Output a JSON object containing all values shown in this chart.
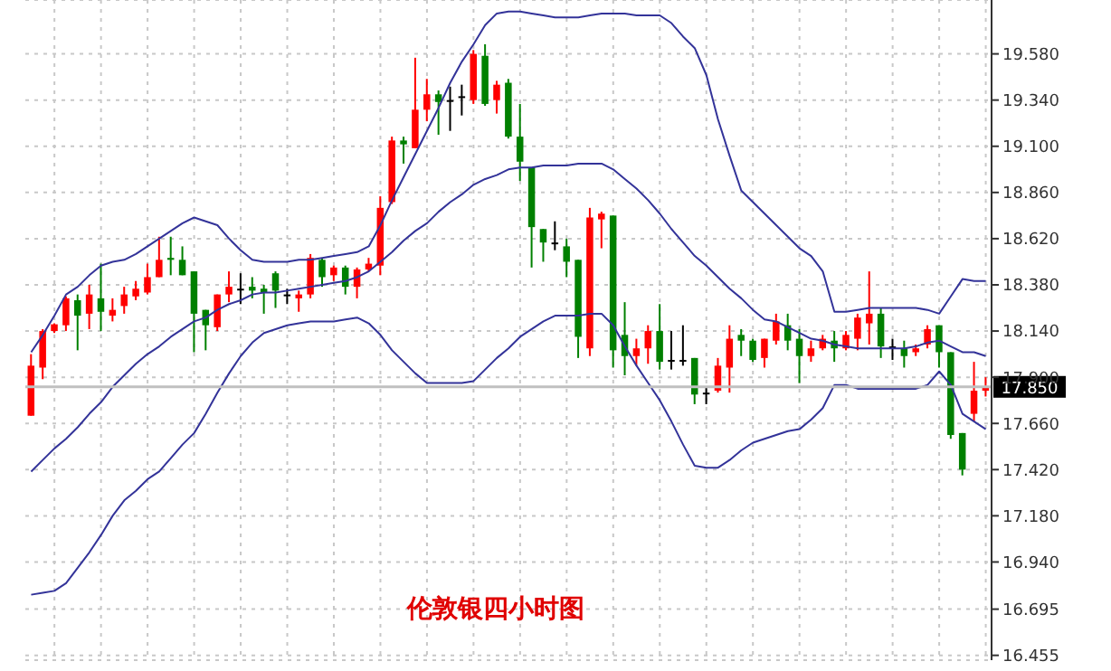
{
  "chart_data": {
    "type": "candlestick",
    "title": "伦敦银四小时图",
    "categories": [
      null,
      null,
      null,
      null,
      null,
      null,
      null,
      null,
      null,
      null,
      null,
      null,
      null,
      null,
      null,
      null,
      null,
      null,
      null,
      null,
      null,
      null,
      null,
      null,
      null,
      null,
      null,
      null,
      null,
      null,
      null,
      null,
      null,
      null,
      null,
      null,
      null,
      null,
      null,
      null,
      null,
      null,
      null,
      null,
      null,
      null,
      null,
      null,
      null,
      null,
      null,
      null,
      null,
      null,
      null,
      null,
      null,
      null,
      null,
      null,
      null,
      null,
      null,
      null,
      null,
      null,
      null,
      null,
      null,
      null,
      null,
      null,
      null,
      null,
      null,
      null,
      null,
      null,
      null,
      null,
      null,
      null,
      null
    ],
    "ohlc": [
      [
        17.7,
        18.02,
        17.7,
        17.96
      ],
      [
        17.95,
        18.15,
        17.89,
        18.14
      ],
      [
        18.14,
        18.18,
        18.13,
        18.175
      ],
      [
        18.17,
        18.32,
        18.14,
        18.31
      ],
      [
        18.3,
        18.33,
        18.04,
        18.22
      ],
      [
        18.23,
        18.38,
        18.15,
        18.33
      ],
      [
        18.31,
        18.49,
        18.14,
        18.24
      ],
      [
        18.22,
        18.31,
        18.19,
        18.25
      ],
      [
        18.27,
        18.37,
        18.23,
        18.33
      ],
      [
        18.32,
        18.4,
        18.3,
        18.36
      ],
      [
        18.34,
        18.49,
        18.33,
        18.42
      ],
      [
        18.42,
        18.63,
        18.42,
        18.51
      ],
      [
        18.52,
        18.63,
        18.43,
        18.51
      ],
      [
        18.51,
        18.58,
        18.43,
        18.43
      ],
      [
        18.45,
        18.45,
        18.03,
        18.23
      ],
      [
        18.25,
        18.25,
        18.04,
        18.17
      ],
      [
        18.16,
        18.33,
        18.14,
        18.33
      ],
      [
        18.33,
        18.45,
        18.29,
        18.37
      ],
      [
        18.36,
        18.44,
        18.28,
        18.36
      ],
      [
        18.37,
        18.42,
        18.31,
        18.35
      ],
      [
        18.36,
        18.38,
        18.23,
        18.34
      ],
      [
        18.44,
        18.45,
        18.26,
        18.35
      ],
      [
        18.33,
        18.36,
        18.28,
        18.33
      ],
      [
        18.31,
        18.35,
        18.24,
        18.33
      ],
      [
        18.33,
        18.54,
        18.31,
        18.52
      ],
      [
        18.51,
        18.52,
        18.37,
        18.42
      ],
      [
        18.43,
        18.48,
        18.4,
        18.47
      ],
      [
        18.47,
        18.48,
        18.33,
        18.37
      ],
      [
        18.37,
        18.47,
        18.31,
        18.46
      ],
      [
        18.46,
        18.52,
        18.45,
        18.49
      ],
      [
        18.48,
        18.84,
        18.43,
        18.78
      ],
      [
        18.81,
        19.15,
        18.8,
        19.13
      ],
      [
        19.13,
        19.15,
        19.01,
        19.11
      ],
      [
        19.09,
        19.56,
        19.09,
        19.29
      ],
      [
        19.29,
        19.45,
        19.23,
        19.37
      ],
      [
        19.37,
        19.39,
        19.16,
        19.33
      ],
      [
        19.34,
        19.41,
        19.18,
        19.34
      ],
      [
        19.36,
        19.42,
        19.26,
        19.36
      ],
      [
        19.34,
        19.6,
        19.32,
        19.58
      ],
      [
        19.57,
        19.63,
        19.31,
        19.32
      ],
      [
        19.34,
        19.44,
        19.27,
        19.42
      ],
      [
        19.43,
        19.45,
        19.14,
        19.15
      ],
      [
        19.15,
        19.32,
        18.92,
        19.02
      ],
      [
        18.99,
        18.99,
        18.47,
        18.68
      ],
      [
        18.67,
        18.67,
        18.5,
        18.6
      ],
      [
        18.6,
        18.71,
        18.56,
        18.6
      ],
      [
        18.58,
        18.62,
        18.42,
        18.5
      ],
      [
        18.51,
        18.51,
        18.0,
        18.11
      ],
      [
        18.05,
        18.78,
        18.01,
        18.73
      ],
      [
        18.72,
        18.76,
        18.57,
        18.75
      ],
      [
        18.74,
        18.74,
        17.95,
        18.04
      ],
      [
        18.12,
        18.29,
        17.91,
        18.01
      ],
      [
        18.01,
        18.1,
        17.96,
        18.05
      ],
      [
        18.05,
        18.17,
        17.97,
        18.14
      ],
      [
        18.14,
        18.28,
        17.94,
        17.98
      ],
      [
        17.99,
        18.14,
        17.94,
        17.99
      ],
      [
        17.99,
        18.17,
        17.96,
        17.99
      ],
      [
        18.0,
        18.0,
        17.76,
        17.81
      ],
      [
        17.82,
        17.85,
        17.76,
        17.82
      ],
      [
        17.83,
        18.0,
        17.82,
        17.96
      ],
      [
        17.95,
        18.17,
        17.82,
        18.1
      ],
      [
        18.12,
        18.15,
        18.01,
        18.09
      ],
      [
        18.09,
        18.1,
        17.98,
        17.99
      ],
      [
        18.0,
        18.1,
        17.95,
        18.1
      ],
      [
        18.09,
        18.23,
        18.07,
        18.19
      ],
      [
        18.17,
        18.23,
        18.04,
        18.09
      ],
      [
        18.1,
        18.15,
        17.87,
        18.01
      ],
      [
        18.01,
        18.09,
        17.98,
        18.05
      ],
      [
        18.05,
        18.12,
        18.04,
        18.1
      ],
      [
        18.09,
        18.14,
        17.98,
        18.05
      ],
      [
        18.05,
        18.14,
        18.04,
        18.12
      ],
      [
        18.1,
        18.23,
        18.04,
        18.21
      ],
      [
        18.18,
        18.45,
        18.07,
        18.23
      ],
      [
        18.23,
        18.26,
        18.0,
        18.06
      ],
      [
        18.06,
        18.1,
        17.99,
        18.06
      ],
      [
        18.05,
        18.09,
        17.95,
        18.01
      ],
      [
        18.03,
        18.07,
        18.01,
        18.05
      ],
      [
        18.07,
        18.17,
        18.05,
        18.15
      ],
      [
        18.17,
        18.17,
        17.95,
        18.03
      ],
      [
        18.03,
        18.03,
        17.58,
        17.6
      ],
      [
        17.61,
        17.61,
        17.39,
        17.42
      ],
      [
        17.71,
        17.98,
        17.67,
        17.83
      ],
      [
        17.83,
        17.9,
        17.8,
        17.85
      ]
    ],
    "colors": [
      "#ff0000",
      "#ff0000",
      "#ff0000",
      "#ff0000",
      "#008000",
      "#ff0000",
      "#008000",
      "#ff0000",
      "#ff0000",
      "#ff0000",
      "#ff0000",
      "#ff0000",
      "#008000",
      "#008000",
      "#008000",
      "#008000",
      "#ff0000",
      "#ff0000",
      "#000000",
      "#008000",
      "#008000",
      "#008000",
      "#000000",
      "#ff0000",
      "#ff0000",
      "#008000",
      "#ff0000",
      "#008000",
      "#ff0000",
      "#ff0000",
      "#ff0000",
      "#ff0000",
      "#008000",
      "#ff0000",
      "#ff0000",
      "#008000",
      "#000000",
      "#000000",
      "#ff0000",
      "#008000",
      "#ff0000",
      "#008000",
      "#008000",
      "#008000",
      "#008000",
      "#000000",
      "#008000",
      "#008000",
      "#ff0000",
      "#ff0000",
      "#008000",
      "#008000",
      "#ff0000",
      "#ff0000",
      "#008000",
      "#000000",
      "#000000",
      "#008000",
      "#000000",
      "#ff0000",
      "#ff0000",
      "#008000",
      "#008000",
      "#ff0000",
      "#ff0000",
      "#008000",
      "#008000",
      "#ff0000",
      "#ff0000",
      "#008000",
      "#ff0000",
      "#ff0000",
      "#ff0000",
      "#008000",
      "#000000",
      "#008000",
      "#ff0000",
      "#ff0000",
      "#008000",
      "#008000",
      "#008000",
      "#ff0000",
      "#ff0000"
    ],
    "series": [
      {
        "type": "line",
        "color": "#333399",
        "values": [
          18.03,
          18.12,
          18.22,
          18.33,
          18.37,
          18.43,
          18.48,
          18.5,
          18.51,
          18.54,
          18.58,
          18.62,
          18.66,
          18.7,
          18.73,
          18.71,
          18.69,
          18.62,
          18.56,
          18.51,
          18.5,
          18.5,
          18.5,
          18.51,
          18.51,
          18.52,
          18.53,
          18.54,
          18.55,
          18.58,
          18.69,
          18.82,
          18.94,
          19.06,
          19.18,
          19.3,
          19.43,
          19.54,
          19.63,
          19.73,
          19.79,
          19.8,
          19.8,
          19.79,
          19.78,
          19.77,
          19.77,
          19.77,
          19.78,
          19.79,
          19.79,
          19.79,
          19.78,
          19.78,
          19.78,
          19.74,
          19.67,
          19.61,
          19.47,
          19.24,
          19.05,
          18.87,
          18.81,
          18.75,
          18.69,
          18.63,
          18.57,
          18.53,
          18.45,
          18.24,
          18.24,
          18.25,
          18.26,
          18.26,
          18.26,
          18.26,
          18.26,
          18.25,
          18.23,
          18.32,
          18.41,
          18.4,
          18.4
        ]
      },
      {
        "type": "line",
        "color": "#333399",
        "values": [
          17.41,
          17.47,
          17.53,
          17.58,
          17.64,
          17.71,
          17.77,
          17.85,
          17.91,
          17.97,
          18.02,
          18.06,
          18.11,
          18.15,
          18.19,
          18.21,
          18.25,
          18.28,
          18.3,
          18.33,
          18.34,
          18.34,
          18.35,
          18.36,
          18.37,
          18.38,
          18.39,
          18.4,
          18.42,
          18.45,
          18.5,
          18.55,
          18.61,
          18.66,
          18.7,
          18.76,
          18.81,
          18.85,
          18.9,
          18.93,
          18.95,
          18.98,
          18.99,
          18.99,
          19.0,
          19.0,
          19.0,
          19.01,
          19.01,
          19.01,
          18.98,
          18.93,
          18.88,
          18.82,
          18.75,
          18.67,
          18.6,
          18.53,
          18.48,
          18.42,
          18.36,
          18.31,
          18.25,
          18.2,
          18.19,
          18.16,
          18.13,
          18.1,
          18.09,
          18.07,
          18.06,
          18.05,
          18.05,
          18.05,
          18.05,
          18.05,
          18.06,
          18.08,
          18.09,
          18.06,
          18.03,
          18.03,
          18.01
        ]
      },
      {
        "type": "line",
        "color": "#333399",
        "values": [
          16.77,
          16.78,
          16.79,
          16.83,
          16.91,
          16.99,
          17.08,
          17.18,
          17.26,
          17.31,
          17.37,
          17.41,
          17.48,
          17.55,
          17.61,
          17.71,
          17.82,
          17.92,
          18.01,
          18.08,
          18.13,
          18.15,
          18.17,
          18.18,
          18.19,
          18.19,
          18.19,
          18.2,
          18.21,
          18.18,
          18.12,
          18.04,
          17.98,
          17.92,
          17.87,
          17.87,
          17.87,
          17.87,
          17.88,
          17.94,
          18.0,
          18.05,
          18.11,
          18.15,
          18.19,
          18.22,
          18.22,
          18.22,
          18.23,
          18.23,
          18.17,
          18.06,
          17.96,
          17.87,
          17.78,
          17.67,
          17.55,
          17.44,
          17.43,
          17.43,
          17.47,
          17.52,
          17.56,
          17.58,
          17.6,
          17.62,
          17.63,
          17.68,
          17.74,
          17.86,
          17.86,
          17.84,
          17.84,
          17.84,
          17.84,
          17.84,
          17.84,
          17.86,
          17.93,
          17.86,
          17.71,
          17.67,
          17.63
        ]
      }
    ],
    "ylim": [
      16.43,
      19.86
    ],
    "yticks": [
      {
        "value": 19.58,
        "label": "19.580"
      },
      {
        "value": 19.34,
        "label": "19.340"
      },
      {
        "value": 19.1,
        "label": "19.100"
      },
      {
        "value": 18.86,
        "label": "18.860"
      },
      {
        "value": 18.62,
        "label": "18.620"
      },
      {
        "value": 18.38,
        "label": "18.380"
      },
      {
        "value": 18.14,
        "label": "18.140"
      },
      {
        "value": 17.9,
        "label": "17.900"
      },
      {
        "value": 17.66,
        "label": "17.660"
      },
      {
        "value": 17.42,
        "label": "17.420"
      },
      {
        "value": 17.18,
        "label": "17.180"
      },
      {
        "value": 16.94,
        "label": "16.940"
      },
      {
        "value": 16.695,
        "label": "16.695"
      },
      {
        "value": 16.455,
        "label": "16.455"
      }
    ],
    "ref_lines": [
      {
        "axis": "y",
        "value": 17.85,
        "label": "17.850",
        "color": "#c0c0c0"
      }
    ],
    "grid": true,
    "tick_labels": "y"
  }
}
